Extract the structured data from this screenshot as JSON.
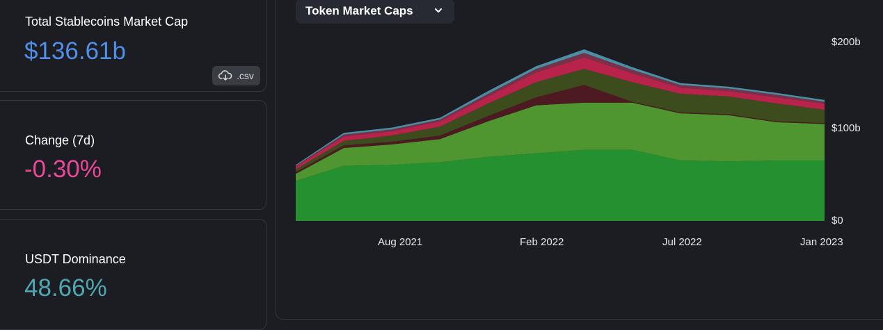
{
  "stats": {
    "market_cap": {
      "label": "Total Stablecoins Market Cap",
      "value": "$136.61b",
      "color": "#4f8fea"
    },
    "csv_label": ".csv",
    "change": {
      "label": "Change (7d)",
      "value": "-0.30%",
      "color": "#ec4899"
    },
    "dominance": {
      "label": "USDT Dominance",
      "value": "48.66%",
      "color": "#4fa7b2"
    }
  },
  "chart": {
    "selector_label": "Token Market Caps"
  },
  "chart_data": {
    "type": "area",
    "stacked": true,
    "x": [
      "2021-04",
      "2021-06",
      "2021-08",
      "2021-10",
      "2021-12",
      "2022-02",
      "2022-04",
      "2022-05",
      "2022-07",
      "2022-09",
      "2022-11",
      "2023-01"
    ],
    "xticks": [
      "Aug 2021",
      "Feb 2022",
      "Jul 2022",
      "Jan 2023"
    ],
    "yticks": [
      "$0",
      "$100b",
      "$200b"
    ],
    "ylim": [
      0,
      200
    ],
    "series": [
      {
        "color": "#25902f",
        "values": [
          45,
          62,
          63,
          66,
          72,
          76,
          80,
          80,
          68,
          67,
          68,
          68
        ]
      },
      {
        "color": "#4f9631",
        "values": [
          8,
          20,
          23,
          26,
          40,
          54,
          53,
          53,
          53,
          52,
          43,
          41
        ]
      },
      {
        "color": "#4d1a22",
        "values": [
          2,
          3,
          3,
          4,
          6,
          9,
          20,
          1,
          1,
          1,
          1,
          1
        ]
      },
      {
        "color": "#3d4c1c",
        "values": [
          3,
          5,
          7,
          10,
          14,
          17,
          18,
          22,
          21,
          20,
          20,
          15
        ]
      },
      {
        "color": "#b7234a",
        "values": [
          3,
          5,
          5,
          6,
          8,
          11,
          13,
          10,
          7,
          6,
          7,
          7
        ]
      },
      {
        "color": "#77324a",
        "values": [
          1,
          2,
          2,
          2,
          3,
          4,
          5,
          4,
          3,
          3,
          3,
          2
        ]
      },
      {
        "color": "#4a8fa6",
        "values": [
          1,
          2,
          2,
          2,
          3,
          3,
          4,
          3,
          2,
          2,
          2,
          2
        ]
      }
    ]
  }
}
